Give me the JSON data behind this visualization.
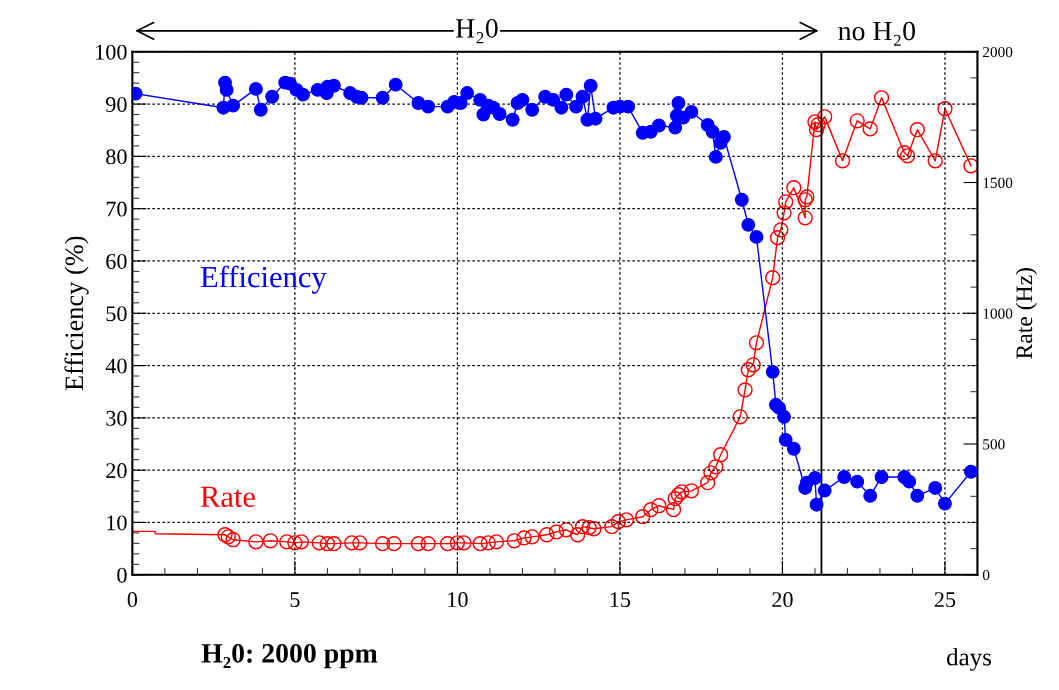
{
  "chart_data": {
    "type": "line",
    "xlabel": "days",
    "ylabel": "Efficiency (%)",
    "y2label": "Rate (Hz)",
    "xlim": [
      0,
      26
    ],
    "xticks": [
      0,
      5,
      10,
      15,
      20,
      25
    ],
    "ylim": [
      0,
      100
    ],
    "yticks": [
      0,
      10,
      20,
      30,
      40,
      50,
      60,
      70,
      80,
      90,
      100
    ],
    "y2lim": [
      0,
      2000
    ],
    "y2ticks": [
      0,
      500,
      1000,
      1500,
      2000
    ],
    "grid": true,
    "line_style": "solid",
    "ref_lines": [
      {
        "axis": "x",
        "value": 21.2,
        "label": "no H₂0",
        "color": "#000000",
        "line_style": "solid"
      }
    ],
    "annotations": [
      "H₂0",
      "H₂0: 2000 ppm"
    ],
    "series": [
      {
        "name": "Efficiency",
        "color": "#0000ff",
        "marker": "circle",
        "x": [
          0.1,
          2.8,
          2.85,
          2.9,
          3.1,
          3.8,
          3.95,
          4.3,
          4.7,
          4.85,
          5.05,
          5.25,
          5.7,
          5.98,
          6.0,
          6.2,
          6.7,
          6.9,
          7.05,
          7.7,
          8.1,
          8.8,
          9.1,
          9.7,
          9.9,
          10.1,
          10.3,
          10.7,
          10.8,
          10.95,
          11.1,
          11.3,
          11.7,
          11.85,
          12.0,
          12.3,
          12.7,
          12.95,
          13.2,
          13.35,
          13.65,
          13.85,
          14.0,
          14.1,
          14.25,
          14.8,
          15.0,
          15.25,
          15.7,
          15.95,
          16.2,
          16.7,
          16.75,
          16.8,
          16.95,
          17.2,
          17.7,
          17.85,
          17.95,
          18.1,
          18.2,
          18.75,
          18.95,
          19.2,
          19.7,
          19.8,
          19.9,
          20.05,
          20.1,
          20.35,
          20.7,
          20.75,
          21.0,
          21.05,
          21.3,
          21.9,
          22.3,
          22.7,
          23.05,
          23.75,
          23.9,
          24.15,
          24.7,
          25.0,
          25.8
        ],
        "values": [
          92.0,
          89.3,
          94.1,
          92.7,
          89.7,
          92.9,
          88.9,
          91.4,
          94.1,
          93.9,
          92.7,
          91.8,
          92.7,
          92.1,
          93.3,
          93.5,
          92.1,
          91.4,
          91.2,
          91.2,
          93.7,
          90.2,
          89.5,
          89.5,
          90.4,
          90.2,
          92.1,
          90.8,
          88.0,
          89.7,
          89.3,
          88.1,
          87.0,
          90.2,
          90.8,
          88.9,
          91.4,
          90.8,
          89.3,
          91.8,
          89.5,
          91.4,
          87.0,
          93.5,
          87.2,
          89.3,
          89.5,
          89.5,
          84.5,
          84.7,
          85.9,
          85.5,
          87.8,
          90.2,
          87.4,
          88.5,
          86.0,
          84.7,
          79.9,
          82.6,
          83.7,
          71.7,
          66.9,
          64.6,
          38.8,
          32.5,
          31.9,
          30.2,
          25.8,
          24.1,
          16.6,
          17.6,
          18.5,
          13.4,
          16.1,
          18.7,
          17.8,
          15.1,
          18.7,
          18.7,
          17.8,
          15.1,
          16.6,
          13.6,
          19.7
        ]
      },
      {
        "color": "#ff0000",
        "axis": "y2",
        "marker": "none",
        "x": [
          0.0,
          0.7,
          0.7,
          2.85
        ],
        "values": [
          166,
          166,
          157,
          153
        ]
      },
      {
        "name": "Rate",
        "color": "#ff0000",
        "axis": "y2",
        "marker": "circle",
        "x": [
          2.85,
          2.95,
          3.1,
          3.8,
          4.25,
          4.75,
          5.0,
          5.2,
          5.75,
          6.0,
          6.2,
          6.75,
          7.0,
          7.7,
          8.05,
          8.8,
          9.1,
          9.7,
          10.0,
          10.2,
          10.7,
          10.95,
          11.2,
          11.75,
          12.05,
          12.3,
          12.75,
          13.05,
          13.35,
          13.7,
          13.85,
          14.05,
          14.2,
          14.75,
          14.95,
          15.2,
          15.7,
          15.95,
          16.2,
          16.65,
          16.7,
          16.8,
          16.9,
          17.2,
          17.7,
          17.8,
          17.95,
          18.1,
          18.7,
          18.85,
          18.95,
          19.1,
          19.2,
          19.7,
          19.85,
          19.95,
          20.05,
          20.1,
          20.35,
          20.7,
          20.7,
          20.75,
          21.0,
          21.05,
          21.1,
          21.3,
          21.85,
          22.3,
          22.7,
          23.05,
          23.75,
          23.85,
          24.15,
          24.7,
          25.0,
          25.8
        ],
        "values": [
          153,
          145,
          134,
          126,
          130,
          126,
          122,
          126,
          122,
          119,
          119,
          122,
          122,
          119,
          119,
          119,
          119,
          119,
          122,
          122,
          119,
          122,
          126,
          130,
          141,
          145,
          153,
          164,
          172,
          153,
          184,
          180,
          176,
          184,
          203,
          210,
          222,
          249,
          264,
          249,
          291,
          306,
          317,
          321,
          352,
          390,
          413,
          459,
          604,
          707,
          784,
          803,
          887,
          1136,
          1289,
          1319,
          1384,
          1426,
          1480,
          1365,
          1434,
          1445,
          1732,
          1702,
          1721,
          1751,
          1583,
          1736,
          1705,
          1824,
          1614,
          1602,
          1702,
          1583,
          1782,
          1564
        ]
      }
    ]
  }
}
